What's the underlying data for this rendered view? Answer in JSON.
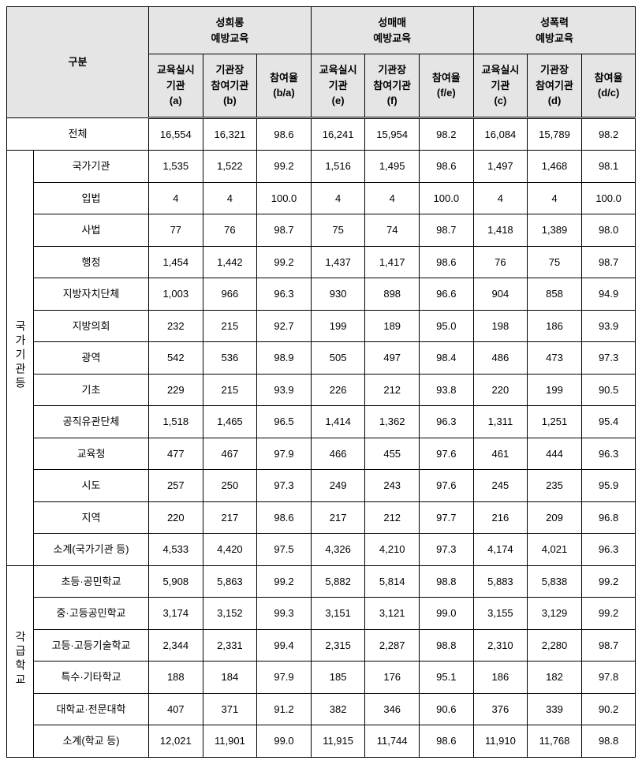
{
  "headers": {
    "gubun": "구분",
    "group1": "성희롱\n예방교육",
    "group2": "성매매\n예방교육",
    "group3": "성폭력\n예방교육",
    "sub1": "교육실시\n기관\n(a)",
    "sub2": "기관장\n참여기관\n(b)",
    "sub3": "참여율\n(b/a)",
    "sub4": "교육실시\n기관\n(e)",
    "sub5": "기관장\n참여기관\n(f)",
    "sub6": "참여율\n(f/e)",
    "sub7": "교육실시\n기관\n(c)",
    "sub8": "기관장\n참여기관\n(d)",
    "sub9": "참여율\n(d/c)"
  },
  "groupA": "국가기관등",
  "groupB": "각급학교",
  "rows": {
    "total": {
      "label": "전체",
      "v": [
        "16,554",
        "16,321",
        "98.6",
        "16,241",
        "15,954",
        "98.2",
        "16,084",
        "15,789",
        "98.2"
      ]
    },
    "r1": {
      "label": "국가기관",
      "v": [
        "1,535",
        "1,522",
        "99.2",
        "1,516",
        "1,495",
        "98.6",
        "1,497",
        "1,468",
        "98.1"
      ]
    },
    "r2": {
      "label": "입법",
      "v": [
        "4",
        "4",
        "100.0",
        "4",
        "4",
        "100.0",
        "4",
        "4",
        "100.0"
      ]
    },
    "r3": {
      "label": "사법",
      "v": [
        "77",
        "76",
        "98.7",
        "75",
        "74",
        "98.7",
        "1,418",
        "1,389",
        "98.0"
      ]
    },
    "r4": {
      "label": "행정",
      "v": [
        "1,454",
        "1,442",
        "99.2",
        "1,437",
        "1,417",
        "98.6",
        "76",
        "75",
        "98.7"
      ]
    },
    "r5": {
      "label": "지방자치단체",
      "v": [
        "1,003",
        "966",
        "96.3",
        "930",
        "898",
        "96.6",
        "904",
        "858",
        "94.9"
      ]
    },
    "r6": {
      "label": "지방의회",
      "v": [
        "232",
        "215",
        "92.7",
        "199",
        "189",
        "95.0",
        "198",
        "186",
        "93.9"
      ]
    },
    "r7": {
      "label": "광역",
      "v": [
        "542",
        "536",
        "98.9",
        "505",
        "497",
        "98.4",
        "486",
        "473",
        "97.3"
      ]
    },
    "r8": {
      "label": "기초",
      "v": [
        "229",
        "215",
        "93.9",
        "226",
        "212",
        "93.8",
        "220",
        "199",
        "90.5"
      ]
    },
    "r9": {
      "label": "공직유관단체",
      "v": [
        "1,518",
        "1,465",
        "96.5",
        "1,414",
        "1,362",
        "96.3",
        "1,311",
        "1,251",
        "95.4"
      ]
    },
    "r10": {
      "label": "교육청",
      "v": [
        "477",
        "467",
        "97.9",
        "466",
        "455",
        "97.6",
        "461",
        "444",
        "96.3"
      ]
    },
    "r11": {
      "label": "시도",
      "v": [
        "257",
        "250",
        "97.3",
        "249",
        "243",
        "97.6",
        "245",
        "235",
        "95.9"
      ]
    },
    "r12": {
      "label": "지역",
      "v": [
        "220",
        "217",
        "98.6",
        "217",
        "212",
        "97.7",
        "216",
        "209",
        "96.8"
      ]
    },
    "r13": {
      "label": "소계(국가기관 등)",
      "v": [
        "4,533",
        "4,420",
        "97.5",
        "4,326",
        "4,210",
        "97.3",
        "4,174",
        "4,021",
        "96.3"
      ]
    },
    "r14": {
      "label": "초등·공민학교",
      "v": [
        "5,908",
        "5,863",
        "99.2",
        "5,882",
        "5,814",
        "98.8",
        "5,883",
        "5,838",
        "99.2"
      ]
    },
    "r15": {
      "label": "중·고등공민학교",
      "v": [
        "3,174",
        "3,152",
        "99.3",
        "3,151",
        "3,121",
        "99.0",
        "3,155",
        "3,129",
        "99.2"
      ]
    },
    "r16": {
      "label": "고등·고등기술학교",
      "v": [
        "2,344",
        "2,331",
        "99.4",
        "2,315",
        "2,287",
        "98.8",
        "2,310",
        "2,280",
        "98.7"
      ]
    },
    "r17": {
      "label": "특수·기타학교",
      "v": [
        "188",
        "184",
        "97.9",
        "185",
        "176",
        "95.1",
        "186",
        "182",
        "97.8"
      ]
    },
    "r18": {
      "label": "대학교·전문대학",
      "v": [
        "407",
        "371",
        "91.2",
        "382",
        "346",
        "90.6",
        "376",
        "339",
        "90.2"
      ]
    },
    "r19": {
      "label": "소계(학교 등)",
      "v": [
        "12,021",
        "11,901",
        "99.0",
        "11,915",
        "11,744",
        "98.6",
        "11,910",
        "11,768",
        "98.8"
      ]
    }
  }
}
